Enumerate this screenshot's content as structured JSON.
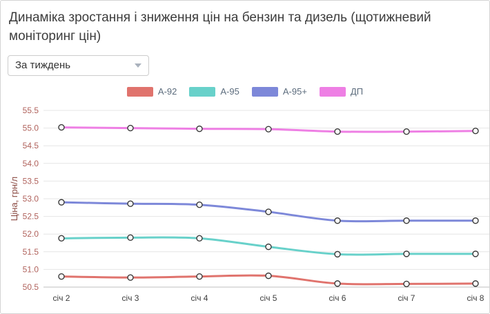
{
  "header": {
    "title": "Динаміка зростання і зниження цін на бензин та дизель (щотижневий моніторинг цін)"
  },
  "controls": {
    "period_select": {
      "value": "За тиждень"
    }
  },
  "chart_data": {
    "type": "line",
    "title": "Динаміка зростання і зниження цін на бензин та дизель (щотижневий моніторинг цін)",
    "ylabel": "Ціна, грн/л",
    "xlabel": "",
    "ylim": [
      50.5,
      55.5
    ],
    "yticks": [
      50.5,
      51.0,
      51.5,
      52.0,
      52.5,
      53.0,
      53.5,
      54.0,
      54.5,
      55.0,
      55.5
    ],
    "grid": true,
    "legend_position": "top",
    "marker_style": "open-circle",
    "categories": [
      "січ 2",
      "січ 3",
      "січ 4",
      "січ 5",
      "січ 6",
      "січ 7",
      "січ 8"
    ],
    "series": [
      {
        "id": "a92",
        "name": "А-92",
        "color": "#e0736d",
        "values": [
          50.8,
          50.77,
          50.8,
          50.82,
          50.6,
          50.59,
          50.6
        ]
      },
      {
        "id": "a95",
        "name": "А-95",
        "color": "#68d1ca",
        "values": [
          51.88,
          51.9,
          51.88,
          51.64,
          51.43,
          51.44,
          51.44
        ]
      },
      {
        "id": "a95plus",
        "name": "А-95+",
        "color": "#7d88d9",
        "values": [
          52.9,
          52.86,
          52.83,
          52.63,
          52.38,
          52.38,
          52.38
        ]
      },
      {
        "id": "dp",
        "name": "ДП",
        "color": "#ee7fe4",
        "values": [
          55.02,
          55.0,
          54.98,
          54.97,
          54.9,
          54.9,
          54.92
        ]
      }
    ]
  }
}
